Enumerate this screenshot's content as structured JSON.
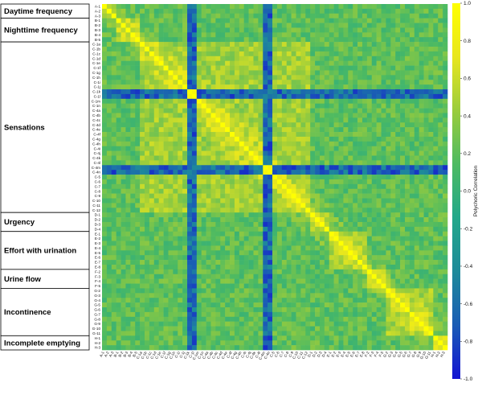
{
  "chart_data": {
    "type": "heatmap",
    "title": "",
    "xlabel": "",
    "ylabel": "",
    "variables": [
      "A-1",
      "A-2",
      "A-3",
      "B-1",
      "B-2",
      "B-3",
      "B-4",
      "B-5",
      "C-1a",
      "C-1b",
      "C-1c",
      "C-1d",
      "C-1e",
      "C-1f",
      "C-1g",
      "C-1h",
      "C-1i",
      "C-1j",
      "C-1k",
      "C-1l",
      "C-1m",
      "C-1n",
      "C-4a",
      "C-4b",
      "C-4c",
      "C-4d",
      "C-4e",
      "C-4f",
      "C-4g",
      "C-4h",
      "C-4i",
      "C-4j",
      "C-4k",
      "C-4l",
      "C-4m",
      "C-4n",
      "C-5",
      "C-6",
      "C-7",
      "C-8",
      "C-9",
      "C-10",
      "C-11",
      "C-12",
      "D-1",
      "D-2",
      "D-3",
      "D-4",
      "E-1",
      "E-2",
      "E-3",
      "E-4",
      "E-5",
      "E-6",
      "E-7",
      "E-8",
      "F-2",
      "F-3",
      "F-4",
      "F-5",
      "G-2",
      "G-3",
      "G-4",
      "G-5",
      "G-6",
      "G-7",
      "G-8",
      "G-9",
      "G-10",
      "G-11",
      "H-1",
      "H-2",
      "H-3"
    ],
    "groups": [
      {
        "label": "Daytime frequency",
        "count": 3
      },
      {
        "label": "Nighttime frequency",
        "count": 5
      },
      {
        "label": "Sensations",
        "count": 36
      },
      {
        "label": "Urgency",
        "count": 4
      },
      {
        "label": "Effort with urination",
        "count": 8
      },
      {
        "label": "Urine flow",
        "count": 4
      },
      {
        "label": "Incontinence",
        "count": 10
      },
      {
        "label": "Incomplete emptying",
        "count": 3
      }
    ],
    "colorbar": {
      "title": "Polychoric Correlation",
      "range": [
        -1.0,
        1.0
      ],
      "ticks": [
        "1.0",
        "0.8",
        "0.6",
        "0.4",
        "0.2",
        "0.0",
        "-0.2",
        "-0.4",
        "-0.6",
        "-0.8",
        "-1.0"
      ],
      "colors": [
        "#1414d2",
        "#1a5cb5",
        "#1e8a9a",
        "#22a88a",
        "#4dba62",
        "#9acc3c",
        "#e8e61e",
        "#ffff00"
      ]
    },
    "pattern": {
      "diagonal": 1.0,
      "within_group_typical": 0.45,
      "between_group_typical": 0.2,
      "negative_variables": [
        "C-1k",
        "C-1l",
        "C-4m",
        "C-4n"
      ],
      "negative_value": -0.9
    }
  }
}
